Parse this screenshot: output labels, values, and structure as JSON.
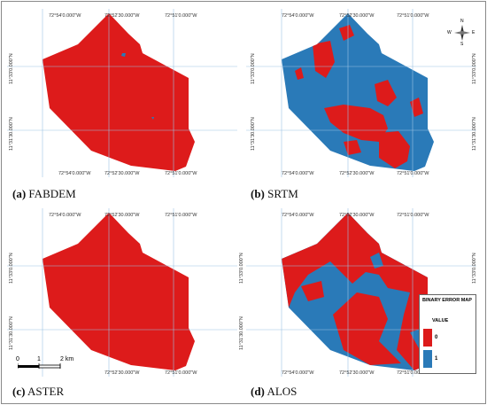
{
  "panels": [
    {
      "id": "a",
      "letter": "(a)",
      "label": "FABDEM"
    },
    {
      "id": "b",
      "letter": "(b)",
      "label": "SRTM"
    },
    {
      "id": "c",
      "letter": "(c)",
      "label": "ASTER"
    },
    {
      "id": "d",
      "letter": "(d)",
      "label": "ALOS"
    }
  ],
  "coordinates": {
    "lon_left": "72°54'0.000\"W",
    "lon_mid": "72°52'30.000\"W",
    "lon_right": "72°51'0.000\"W",
    "lat_top": "11°33'0.000\"N",
    "lat_bottom": "11°31'30.000\"N"
  },
  "legend": {
    "title": "BINARY ERROR MAP",
    "subtitle": "VALUE",
    "items": [
      {
        "value": "0",
        "color": "#dd1b1b"
      },
      {
        "value": "1",
        "color": "#2a7ab8"
      }
    ]
  },
  "scale_bar": {
    "ticks": [
      "0",
      "1",
      "2 km"
    ]
  },
  "compass": {
    "n": "N",
    "s": "S",
    "e": "E",
    "w": "W"
  },
  "colors": {
    "error_0": "#dd1b1b",
    "error_1": "#2a7ab8",
    "grid": "#9cc3e4"
  }
}
